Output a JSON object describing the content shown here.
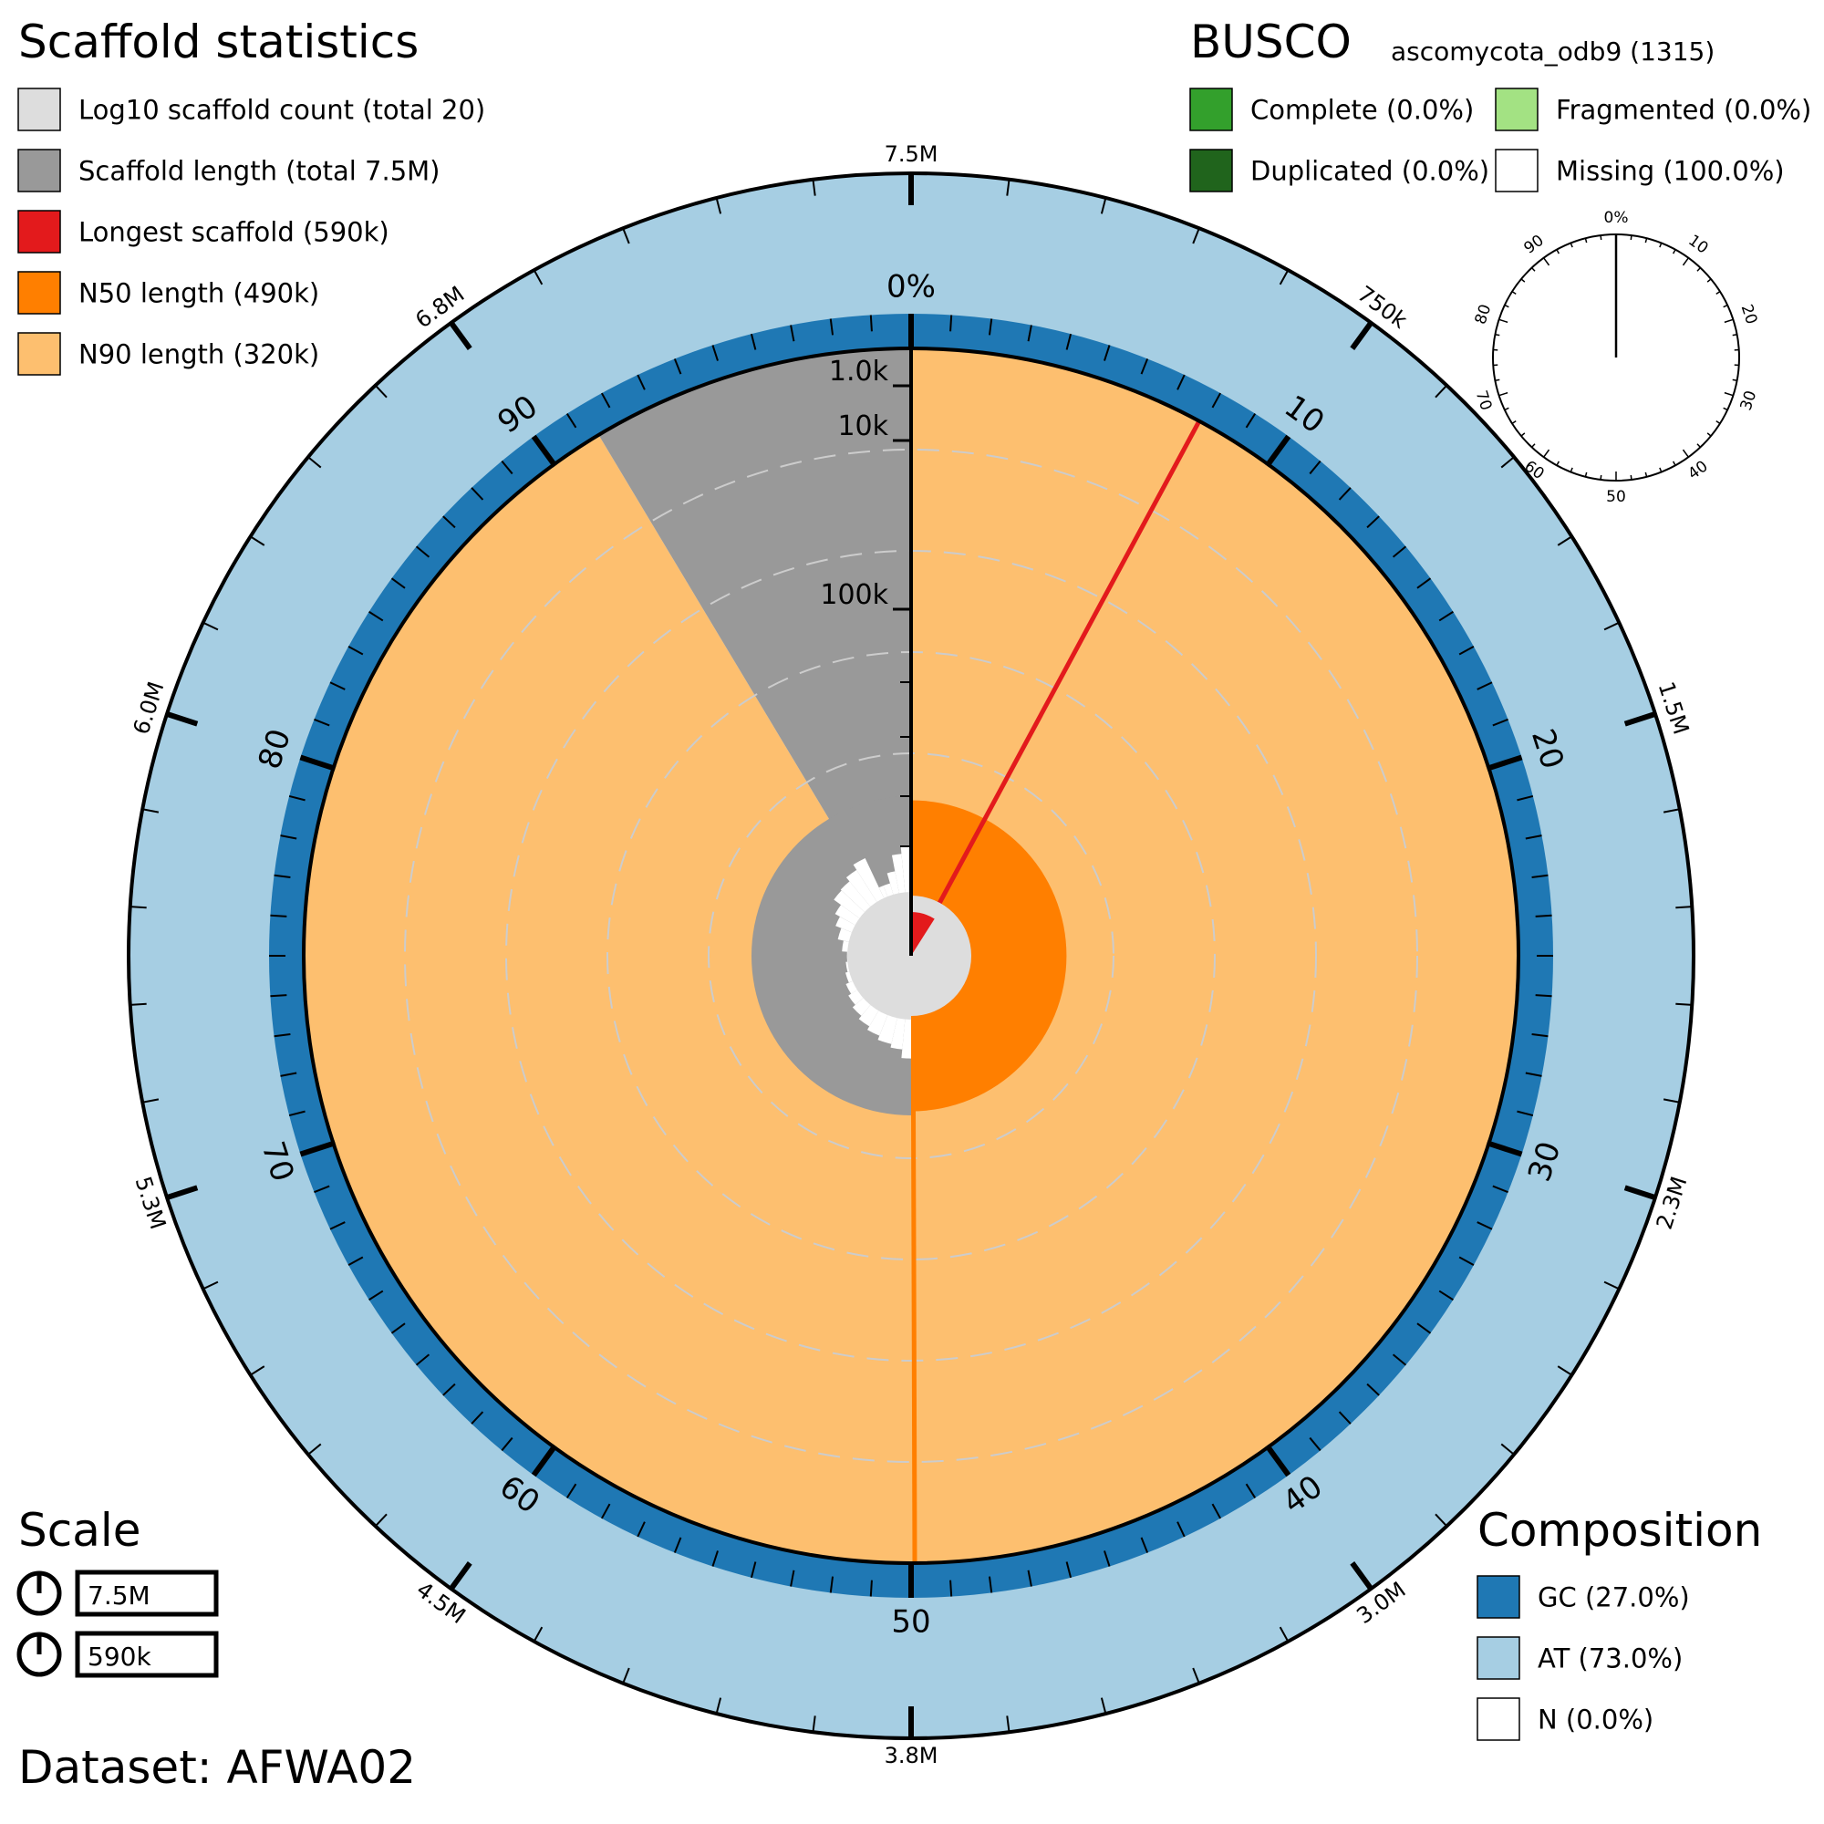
{
  "chart_data": {
    "type": "snail",
    "dataset_label": "Dataset: AFWA02",
    "scaffold_statistics": {
      "title": "Scaffold statistics",
      "legend": [
        {
          "label": "Log10 scaffold count (total 20)",
          "color": "#dddddd"
        },
        {
          "label": "Scaffold length (total 7.5M)",
          "color": "#999999"
        },
        {
          "label": "Longest scaffold (590k)",
          "color": "#e31a1c"
        },
        {
          "label": "N50 length (490k)",
          "color": "#ff7f00"
        },
        {
          "label": "N90 length (320k)",
          "color": "#fdbf6f"
        }
      ],
      "scaffold_count": 20,
      "total_length": 7500000,
      "longest_scaffold": 590000,
      "n50_length": 490000,
      "n90_length": 320000,
      "n90_end_percent": 91.4
    },
    "busco": {
      "title": "BUSCO",
      "lineage": "ascomycota_odb9 (1315)",
      "legend": [
        {
          "label": "Complete (0.0%)",
          "color": "#33a02c"
        },
        {
          "label": "Fragmented (0.0%)",
          "color": "#a3e283"
        },
        {
          "label": "Duplicated (0.0%)",
          "color": "#20641c"
        },
        {
          "label": "Missing (100.0%)",
          "color": "#ffffff"
        }
      ],
      "complete": 0.0,
      "duplicated": 0.0,
      "fragmented": 0.0,
      "missing": 100.0,
      "dial_ticks": [
        "0%",
        "10",
        "20",
        "30",
        "40",
        "50",
        "60",
        "70",
        "80",
        "90"
      ]
    },
    "composition": {
      "title": "Composition",
      "legend": [
        {
          "label": "GC (27.0%)",
          "color": "#1f78b4"
        },
        {
          "label": "AT (73.0%)",
          "color": "#a6cee3"
        },
        {
          "label": "N (0.0%)",
          "color": "#ffffff"
        }
      ],
      "gc": 27.0,
      "at": 73.0,
      "n": 0.0
    },
    "scale": {
      "title": "Scale",
      "items": [
        "7.5M",
        "590k"
      ]
    },
    "percent_axis": {
      "labels": [
        "0%",
        "10",
        "20",
        "30",
        "40",
        "50",
        "60",
        "70",
        "80",
        "90"
      ]
    },
    "length_axis": {
      "labels": [
        "7.5M",
        "750k",
        "1.5M",
        "2.3M",
        "3.0M",
        "3.8M",
        "4.5M",
        "5.3M",
        "6.0M",
        "6.8M"
      ]
    },
    "radial_axis": {
      "labels": [
        "1.0k",
        "10k",
        "100k"
      ],
      "values": [
        1000,
        10000,
        100000
      ]
    },
    "count_profile": [
      {
        "from": 0,
        "to": 3,
        "r": 0.282
      },
      {
        "from": 3,
        "to": 7,
        "r": 0.258
      },
      {
        "from": 7,
        "to": 12,
        "r": 0.248
      },
      {
        "from": 12,
        "to": 17,
        "r": 0.236
      },
      {
        "from": 17,
        "to": 22,
        "r": 0.225
      },
      {
        "from": 22,
        "to": 27,
        "r": 0.214
      },
      {
        "from": 27,
        "to": 32,
        "r": 0.204
      },
      {
        "from": 32,
        "to": 37,
        "r": 0.195
      },
      {
        "from": 37,
        "to": 42,
        "r": 0.186
      },
      {
        "from": 42,
        "to": 47,
        "r": 0.18
      },
      {
        "from": 47,
        "to": 52,
        "r": 0.176
      },
      {
        "from": 52,
        "to": 57,
        "r": 0.19
      },
      {
        "from": 57,
        "to": 62,
        "r": 0.206
      },
      {
        "from": 62,
        "to": 66,
        "r": 0.223
      },
      {
        "from": 66,
        "to": 70,
        "r": 0.238
      },
      {
        "from": 70,
        "to": 74,
        "r": 0.262
      },
      {
        "from": 74,
        "to": 78,
        "r": 0.265
      },
      {
        "from": 78,
        "to": 82,
        "r": 0.279
      },
      {
        "from": 82,
        "to": 86,
        "r": 0.296
      },
      {
        "from": 86,
        "to": 88,
        "r": 0.207
      },
      {
        "from": 88,
        "to": 91,
        "r": 0.207
      },
      {
        "from": 91,
        "to": 94,
        "r": 0.236
      },
      {
        "from": 94,
        "to": 97,
        "r": 0.281
      },
      {
        "from": 97,
        "to": 100,
        "r": 0.3
      }
    ],
    "colors": {
      "gc": "#1f78b4",
      "at": "#a6cee3",
      "scaffold": "#999999",
      "count": "#dddddd",
      "longest": "#e31a1c",
      "n50": "#ff7f00",
      "n90": "#fdbf6f",
      "grid": "#cccccc"
    }
  }
}
